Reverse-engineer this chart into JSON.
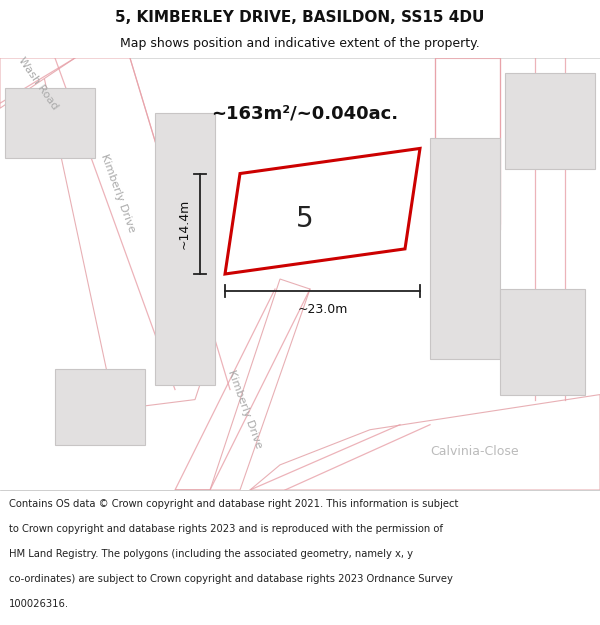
{
  "title": "5, KIMBERLEY DRIVE, BASILDON, SS15 4DU",
  "subtitle": "Map shows position and indicative extent of the property.",
  "area_label": "~163m²/~0.040ac.",
  "number_label": "5",
  "dim_width": "~23.0m",
  "dim_height": "~14.4m",
  "footer_lines": [
    "Contains OS data © Crown copyright and database right 2021. This information is subject",
    "to Crown copyright and database rights 2023 and is reproduced with the permission of",
    "HM Land Registry. The polygons (including the associated geometry, namely x, y",
    "co-ordinates) are subject to Crown copyright and database rights 2023 Ordnance Survey",
    "100026316."
  ],
  "bg_color": "#f2f0f0",
  "road_fill": "#ffffff",
  "road_edge": "#e8b0b5",
  "building_fill": "#e2e0e0",
  "building_edge": "#c8c5c5",
  "highlight_stroke": "#cc0000",
  "highlight_fill": "#ffffff",
  "dim_color": "#222222",
  "title_fontsize": 11,
  "subtitle_fontsize": 9,
  "footer_fontsize": 7.2,
  "street_color": "#aaaaaa",
  "wash_road_label": "Wash Road",
  "kimberly_drive_label": "Kimberly Drive",
  "calvinia_label": "Calvinia-Close"
}
